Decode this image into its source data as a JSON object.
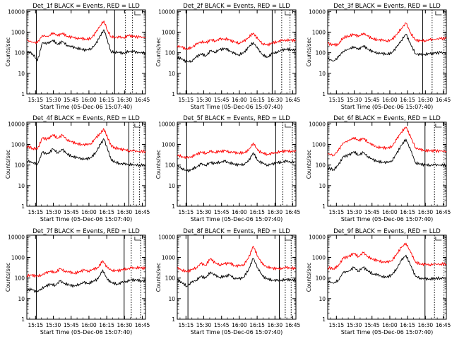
{
  "figure": {
    "xlabel": "Start Time (05-Dec-06 15:07:40)",
    "ylabel": "Counts/sec",
    "x_tick_labels": [
      "15:15",
      "15:30",
      "15:45",
      "16:00",
      "16:15",
      "16:30",
      "16:45"
    ],
    "y_tick_labels": [
      "1",
      "10",
      "100",
      "1000",
      "10000"
    ],
    "colors": {
      "events": "#000000",
      "lld": "#ff0000"
    }
  },
  "chart_data": [
    {
      "type": "line",
      "title": "Det_1f BLACK = Events, RED = LLD",
      "xlabel": "Start Time (05-Dec-06 15:07:40)",
      "ylabel": "Counts/sec",
      "x_unit": "minutes after 15:07:40",
      "xlim": [
        0,
        100
      ],
      "ylim": [
        1,
        12000
      ],
      "y_scale": "log",
      "x": [
        0,
        5,
        9,
        13,
        18,
        22,
        26,
        30,
        34,
        38,
        42,
        46,
        50,
        54,
        58,
        62,
        65,
        68,
        71,
        74,
        78,
        82,
        86,
        90,
        95,
        100
      ],
      "series": [
        {
          "name": "Events",
          "color": "#000000",
          "values": [
            120,
            90,
            40,
            300,
            280,
            420,
            250,
            350,
            230,
            190,
            170,
            150,
            130,
            160,
            250,
            700,
            1300,
            400,
            110,
            110,
            100,
            95,
            120,
            110,
            100,
            100
          ]
        },
        {
          "name": "LLD",
          "color": "#ff0000",
          "values": [
            400,
            330,
            300,
            700,
            600,
            950,
            650,
            900,
            620,
            560,
            520,
            480,
            450,
            500,
            900,
            2200,
            3500,
            1200,
            600,
            580,
            560,
            550,
            700,
            600,
            570,
            560
          ]
        }
      ],
      "vlines_solid": [
        8,
        74
      ],
      "vlines_dotted": [
        83,
        89
      ]
    },
    {
      "type": "line",
      "title": "Det_2f BLACK = Events, RED = LLD",
      "xlabel": "Start Time (05-Dec-06 15:07:40)",
      "ylabel": "Counts/sec",
      "x_unit": "minutes after 15:07:40",
      "xlim": [
        0,
        100
      ],
      "ylim": [
        1,
        12000
      ],
      "y_scale": "log",
      "x": [
        0,
        4,
        8,
        12,
        16,
        20,
        24,
        28,
        32,
        36,
        40,
        44,
        48,
        52,
        56,
        60,
        64,
        68,
        72,
        76,
        80,
        84,
        88,
        92,
        96,
        100
      ],
      "series": [
        {
          "name": "Events",
          "color": "#000000",
          "values": [
            60,
            50,
            35,
            40,
            60,
            90,
            70,
            120,
            110,
            140,
            160,
            130,
            90,
            80,
            100,
            180,
            320,
            150,
            80,
            60,
            90,
            110,
            130,
            150,
            140,
            130
          ]
        },
        {
          "name": "LLD",
          "color": "#ff0000",
          "values": [
            220,
            180,
            150,
            180,
            250,
            350,
            300,
            420,
            380,
            450,
            480,
            420,
            330,
            300,
            350,
            550,
            900,
            450,
            280,
            230,
            300,
            340,
            380,
            420,
            400,
            390
          ]
        }
      ],
      "vlines_solid": [
        8,
        80
      ],
      "vlines_dotted": [
        88,
        95
      ]
    },
    {
      "type": "line",
      "title": "Det_3f BLACK = Events, RED = LLD",
      "xlabel": "Start Time (05-Dec-06 15:07:40)",
      "ylabel": "Counts/sec",
      "x_unit": "minutes after 15:07:40",
      "xlim": [
        0,
        100
      ],
      "ylim": [
        1,
        12000
      ],
      "y_scale": "log",
      "x": [
        0,
        5,
        9,
        13,
        18,
        22,
        26,
        30,
        34,
        38,
        42,
        46,
        50,
        54,
        58,
        62,
        66,
        70,
        74,
        78,
        82,
        86,
        90,
        95,
        100
      ],
      "series": [
        {
          "name": "Events",
          "color": "#000000",
          "values": [
            50,
            40,
            60,
            120,
            150,
            200,
            140,
            220,
            150,
            110,
            100,
            90,
            85,
            100,
            180,
            400,
            800,
            250,
            90,
            80,
            85,
            90,
            95,
            100,
            100
          ]
        },
        {
          "name": "LLD",
          "color": "#ff0000",
          "values": [
            280,
            240,
            250,
            550,
            650,
            800,
            600,
            900,
            620,
            480,
            430,
            400,
            380,
            420,
            750,
            1500,
            2700,
            900,
            400,
            380,
            390,
            420,
            450,
            480,
            500
          ]
        }
      ],
      "vlines_solid": [
        80
      ],
      "vlines_dotted": [
        88,
        98
      ]
    },
    {
      "type": "line",
      "title": "Det_4f BLACK = Events, RED = LLD",
      "xlabel": "Start Time (05-Dec-06 15:07:40)",
      "ylabel": "Counts/sec",
      "x_unit": "minutes after 15:07:40",
      "xlim": [
        0,
        100
      ],
      "ylim": [
        1,
        12000
      ],
      "y_scale": "log",
      "x": [
        0,
        5,
        9,
        13,
        18,
        22,
        26,
        30,
        34,
        38,
        42,
        46,
        50,
        54,
        58,
        62,
        65,
        68,
        71,
        74,
        78,
        82,
        86,
        90,
        95,
        100
      ],
      "series": [
        {
          "name": "Events",
          "color": "#000000",
          "values": [
            160,
            130,
            110,
            400,
            350,
            600,
            400,
            550,
            350,
            260,
            230,
            210,
            190,
            230,
            400,
            1000,
            1800,
            600,
            180,
            140,
            120,
            110,
            110,
            100,
            100,
            100
          ]
        },
        {
          "name": "LLD",
          "color": "#ff0000",
          "values": [
            800,
            650,
            600,
            2000,
            1800,
            3000,
            2000,
            2800,
            1700,
            1300,
            1100,
            1000,
            950,
            1100,
            2000,
            3500,
            5500,
            2200,
            900,
            700,
            600,
            550,
            500,
            480,
            450,
            460
          ]
        }
      ],
      "vlines_solid": [
        8,
        86
      ],
      "vlines_dotted": [
        90,
        95
      ]
    },
    {
      "type": "line",
      "title": "Det_5f BLACK = Events, RED = LLD",
      "xlabel": "Start Time (05-Dec-06 15:07:40)",
      "ylabel": "Counts/sec",
      "x_unit": "minutes after 15:07:40",
      "xlim": [
        0,
        100
      ],
      "ylim": [
        1,
        12000
      ],
      "y_scale": "log",
      "x": [
        0,
        4,
        8,
        12,
        16,
        20,
        24,
        28,
        32,
        36,
        40,
        44,
        48,
        52,
        56,
        60,
        64,
        68,
        72,
        76,
        80,
        84,
        88,
        92,
        96,
        100
      ],
      "series": [
        {
          "name": "Events",
          "color": "#000000",
          "values": [
            90,
            70,
            50,
            60,
            80,
            110,
            100,
            130,
            120,
            140,
            150,
            130,
            110,
            100,
            110,
            150,
            400,
            160,
            120,
            100,
            110,
            130,
            140,
            150,
            140,
            140
          ]
        },
        {
          "name": "LLD",
          "color": "#ff0000",
          "values": [
            300,
            260,
            220,
            260,
            320,
            420,
            380,
            450,
            420,
            460,
            480,
            440,
            400,
            380,
            400,
            500,
            1200,
            500,
            380,
            330,
            360,
            420,
            450,
            480,
            470,
            460
          ]
        }
      ],
      "vlines_solid": [
        8,
        83
      ],
      "vlines_dotted": [
        89,
        97
      ]
    },
    {
      "type": "line",
      "title": "Det_6f BLACK = Events, RED = LLD",
      "xlabel": "Start Time (05-Dec-06 15:07:40)",
      "ylabel": "Counts/sec",
      "x_unit": "minutes after 15:07:40",
      "xlim": [
        0,
        100
      ],
      "ylim": [
        1,
        12000
      ],
      "y_scale": "log",
      "x": [
        0,
        5,
        9,
        13,
        18,
        22,
        26,
        30,
        34,
        38,
        42,
        46,
        50,
        54,
        58,
        62,
        66,
        70,
        74,
        78,
        82,
        86,
        90,
        95,
        100
      ],
      "series": [
        {
          "name": "Events",
          "color": "#000000",
          "values": [
            70,
            60,
            100,
            250,
            300,
            450,
            300,
            400,
            260,
            180,
            150,
            140,
            130,
            160,
            350,
            900,
            1800,
            500,
            130,
            110,
            100,
            100,
            100,
            100,
            100
          ]
        },
        {
          "name": "LLD",
          "color": "#ff0000",
          "values": [
            350,
            300,
            500,
            1200,
            1500,
            2200,
            1500,
            2000,
            1300,
            900,
            750,
            700,
            650,
            800,
            1700,
            4000,
            7000,
            2200,
            700,
            550,
            500,
            500,
            480,
            470,
            470
          ]
        }
      ],
      "vlines_solid": [
        82
      ],
      "vlines_dotted": [
        90,
        98
      ]
    },
    {
      "type": "line",
      "title": "Det_7f BLACK = Events, RED = LLD",
      "xlabel": "Start Time (05-Dec-06 15:07:40)",
      "ylabel": "Counts/sec",
      "x_unit": "minutes after 15:07:40",
      "xlim": [
        0,
        100
      ],
      "ylim": [
        1,
        12000
      ],
      "y_scale": "log",
      "x": [
        0,
        4,
        8,
        12,
        16,
        20,
        24,
        28,
        32,
        36,
        40,
        44,
        48,
        52,
        56,
        60,
        64,
        68,
        72,
        76,
        80,
        84,
        88,
        92,
        96,
        100
      ],
      "series": [
        {
          "name": "Events",
          "color": "#000000",
          "values": [
            25,
            30,
            20,
            30,
            40,
            50,
            45,
            70,
            55,
            45,
            40,
            50,
            60,
            55,
            70,
            90,
            250,
            80,
            60,
            50,
            60,
            70,
            80,
            80,
            75,
            70
          ]
        },
        {
          "name": "LLD",
          "color": "#ff0000",
          "values": [
            130,
            140,
            120,
            140,
            170,
            220,
            180,
            280,
            220,
            190,
            170,
            200,
            240,
            220,
            260,
            320,
            700,
            300,
            240,
            220,
            250,
            280,
            300,
            320,
            310,
            300
          ]
        }
      ],
      "vlines_solid": [
        8,
        82
      ],
      "vlines_dotted": [
        88,
        96
      ]
    },
    {
      "type": "line",
      "title": "Det_8f BLACK = Events, RED = LLD",
      "xlabel": "Start Time (05-Dec-06 15:07:40)",
      "ylabel": "Counts/sec",
      "x_unit": "minutes after 15:07:40",
      "xlim": [
        0,
        100
      ],
      "ylim": [
        1,
        12000
      ],
      "y_scale": "log",
      "x": [
        0,
        4,
        8,
        12,
        16,
        20,
        24,
        28,
        32,
        36,
        40,
        44,
        48,
        52,
        56,
        60,
        64,
        68,
        72,
        76,
        80,
        84,
        88,
        92,
        96,
        100
      ],
      "series": [
        {
          "name": "Events",
          "color": "#000000",
          "values": [
            80,
            60,
            40,
            60,
            80,
            120,
            100,
            200,
            130,
            110,
            120,
            140,
            100,
            90,
            110,
            250,
            900,
            300,
            120,
            90,
            80,
            75,
            80,
            85,
            80,
            80
          ]
        },
        {
          "name": "LLD",
          "color": "#ff0000",
          "values": [
            300,
            250,
            200,
            250,
            320,
            500,
            420,
            900,
            520,
            450,
            480,
            550,
            400,
            380,
            450,
            900,
            3500,
            1100,
            450,
            350,
            300,
            280,
            300,
            320,
            300,
            300
          ]
        }
      ],
      "vlines_solid": [
        9,
        86
      ],
      "vlines_dotted": [
        91,
        96
      ]
    },
    {
      "type": "line",
      "title": "Det_9f BLACK = Events, RED = LLD",
      "xlabel": "Start Time (05-Dec-06 15:07:40)",
      "ylabel": "Counts/sec",
      "x_unit": "minutes after 15:07:40",
      "xlim": [
        0,
        100
      ],
      "ylim": [
        1,
        12000
      ],
      "y_scale": "log",
      "x": [
        0,
        5,
        9,
        13,
        18,
        22,
        26,
        30,
        34,
        38,
        42,
        46,
        50,
        54,
        58,
        62,
        66,
        70,
        74,
        78,
        82,
        86,
        90,
        95,
        100
      ],
      "series": [
        {
          "name": "Events",
          "color": "#000000",
          "values": [
            70,
            55,
            80,
            180,
            220,
            320,
            220,
            330,
            220,
            160,
            140,
            120,
            110,
            140,
            280,
            700,
            1300,
            400,
            120,
            100,
            90,
            90,
            95,
            100,
            100
          ]
        },
        {
          "name": "LLD",
          "color": "#ff0000",
          "values": [
            320,
            280,
            400,
            900,
            1100,
            1600,
            1100,
            1700,
            1100,
            800,
            700,
            620,
            580,
            700,
            1400,
            3000,
            5000,
            1700,
            600,
            480,
            450,
            450,
            460,
            480,
            480
          ]
        }
      ],
      "vlines_solid": [
        82
      ],
      "vlines_dotted": [
        90,
        98
      ]
    }
  ]
}
